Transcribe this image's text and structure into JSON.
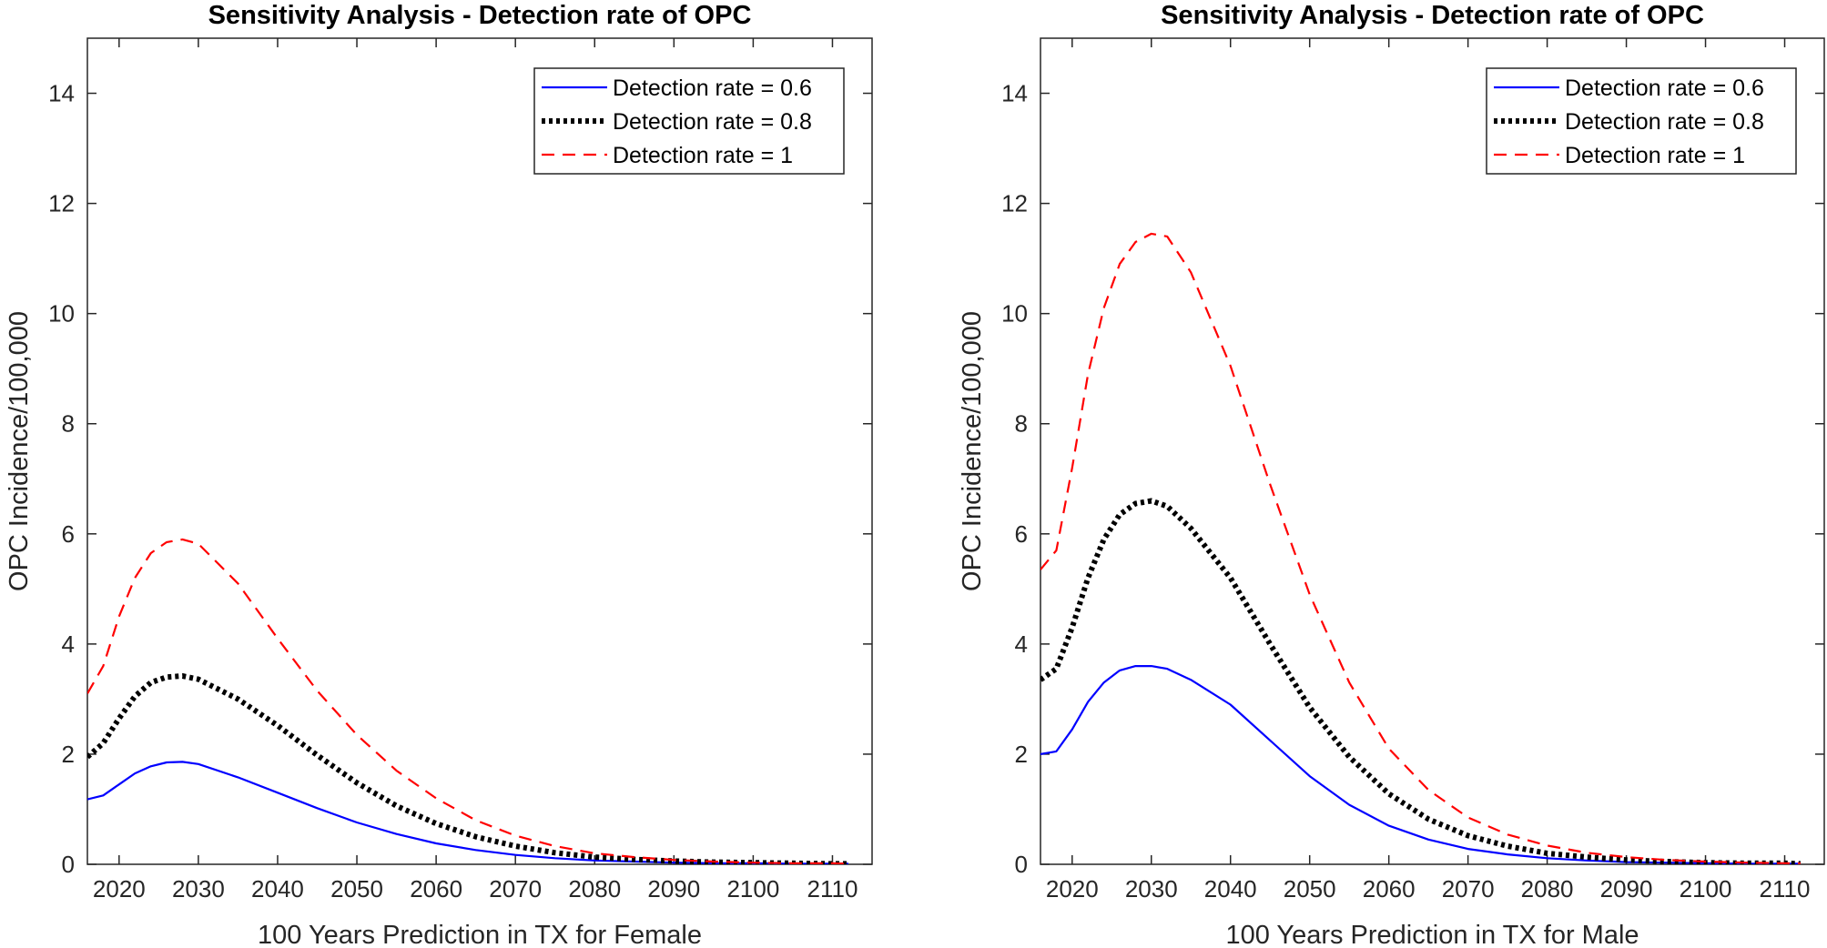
{
  "chart_data": [
    {
      "type": "line",
      "title": "Sensitivity Analysis - Detection rate of OPC",
      "xlabel": "100 Years Prediction in TX for Female",
      "ylabel": "OPC Incidence/100,000",
      "xlim": [
        2016,
        2115
      ],
      "ylim": [
        0,
        15
      ],
      "xticks": [
        2020,
        2030,
        2040,
        2050,
        2060,
        2070,
        2080,
        2090,
        2100,
        2110
      ],
      "yticks": [
        0,
        2,
        4,
        6,
        8,
        10,
        12,
        14
      ],
      "legend": "top-right",
      "x": [
        2016,
        2018,
        2020,
        2022,
        2024,
        2026,
        2028,
        2030,
        2035,
        2040,
        2045,
        2050,
        2055,
        2060,
        2065,
        2070,
        2075,
        2080,
        2085,
        2090,
        2095,
        2100,
        2105,
        2110,
        2112
      ],
      "series": [
        {
          "name": "Detection rate = 0.6",
          "color": "#0000ff",
          "style": "solid",
          "values": [
            1.18,
            1.25,
            1.45,
            1.65,
            1.78,
            1.85,
            1.86,
            1.82,
            1.58,
            1.3,
            1.02,
            0.76,
            0.55,
            0.38,
            0.26,
            0.17,
            0.11,
            0.07,
            0.05,
            0.03,
            0.02,
            0.02,
            0.01,
            0.01,
            0.01
          ]
        },
        {
          "name": "Detection rate = 0.8",
          "color": "#000000",
          "style": "dotted",
          "values": [
            1.95,
            2.2,
            2.65,
            3.05,
            3.3,
            3.4,
            3.42,
            3.36,
            3.0,
            2.52,
            1.98,
            1.48,
            1.06,
            0.74,
            0.5,
            0.33,
            0.21,
            0.13,
            0.09,
            0.06,
            0.04,
            0.03,
            0.02,
            0.01,
            0.01
          ]
        },
        {
          "name": "Detection rate = 1",
          "color": "#ff0000",
          "style": "dashed",
          "values": [
            3.1,
            3.6,
            4.5,
            5.2,
            5.65,
            5.85,
            5.9,
            5.82,
            5.1,
            4.1,
            3.15,
            2.35,
            1.7,
            1.2,
            0.8,
            0.52,
            0.33,
            0.2,
            0.13,
            0.08,
            0.05,
            0.03,
            0.02,
            0.02,
            0.01
          ]
        }
      ]
    },
    {
      "type": "line",
      "title": "Sensitivity Analysis - Detection rate of OPC",
      "xlabel": "100 Years Prediction in TX for Male",
      "ylabel": "OPC Incidence/100,000",
      "xlim": [
        2016,
        2115
      ],
      "ylim": [
        0,
        15
      ],
      "xticks": [
        2020,
        2030,
        2040,
        2050,
        2060,
        2070,
        2080,
        2090,
        2100,
        2110
      ],
      "yticks": [
        0,
        2,
        4,
        6,
        8,
        10,
        12,
        14
      ],
      "legend": "top-right",
      "x": [
        2016,
        2018,
        2020,
        2022,
        2024,
        2026,
        2028,
        2030,
        2032,
        2035,
        2040,
        2045,
        2050,
        2055,
        2060,
        2065,
        2070,
        2075,
        2080,
        2085,
        2090,
        2095,
        2100,
        2105,
        2110,
        2112
      ],
      "series": [
        {
          "name": "Detection rate = 0.6",
          "color": "#0000ff",
          "style": "solid",
          "values": [
            2.0,
            2.05,
            2.45,
            2.95,
            3.3,
            3.52,
            3.6,
            3.6,
            3.55,
            3.35,
            2.9,
            2.25,
            1.6,
            1.08,
            0.7,
            0.45,
            0.28,
            0.18,
            0.11,
            0.07,
            0.04,
            0.03,
            0.02,
            0.01,
            0.01,
            0.01
          ]
        },
        {
          "name": "Detection rate = 0.8",
          "color": "#000000",
          "style": "dotted",
          "values": [
            3.35,
            3.55,
            4.3,
            5.2,
            5.9,
            6.35,
            6.55,
            6.6,
            6.5,
            6.1,
            5.2,
            4.0,
            2.85,
            1.95,
            1.28,
            0.82,
            0.52,
            0.33,
            0.2,
            0.13,
            0.08,
            0.05,
            0.03,
            0.02,
            0.02,
            0.01
          ]
        },
        {
          "name": "Detection rate = 1",
          "color": "#ff0000",
          "style": "dashed",
          "values": [
            5.35,
            5.7,
            7.2,
            8.9,
            10.1,
            10.9,
            11.3,
            11.45,
            11.4,
            10.75,
            9.05,
            6.9,
            4.9,
            3.3,
            2.1,
            1.35,
            0.85,
            0.54,
            0.34,
            0.21,
            0.13,
            0.08,
            0.05,
            0.03,
            0.02,
            0.02
          ]
        }
      ]
    }
  ]
}
